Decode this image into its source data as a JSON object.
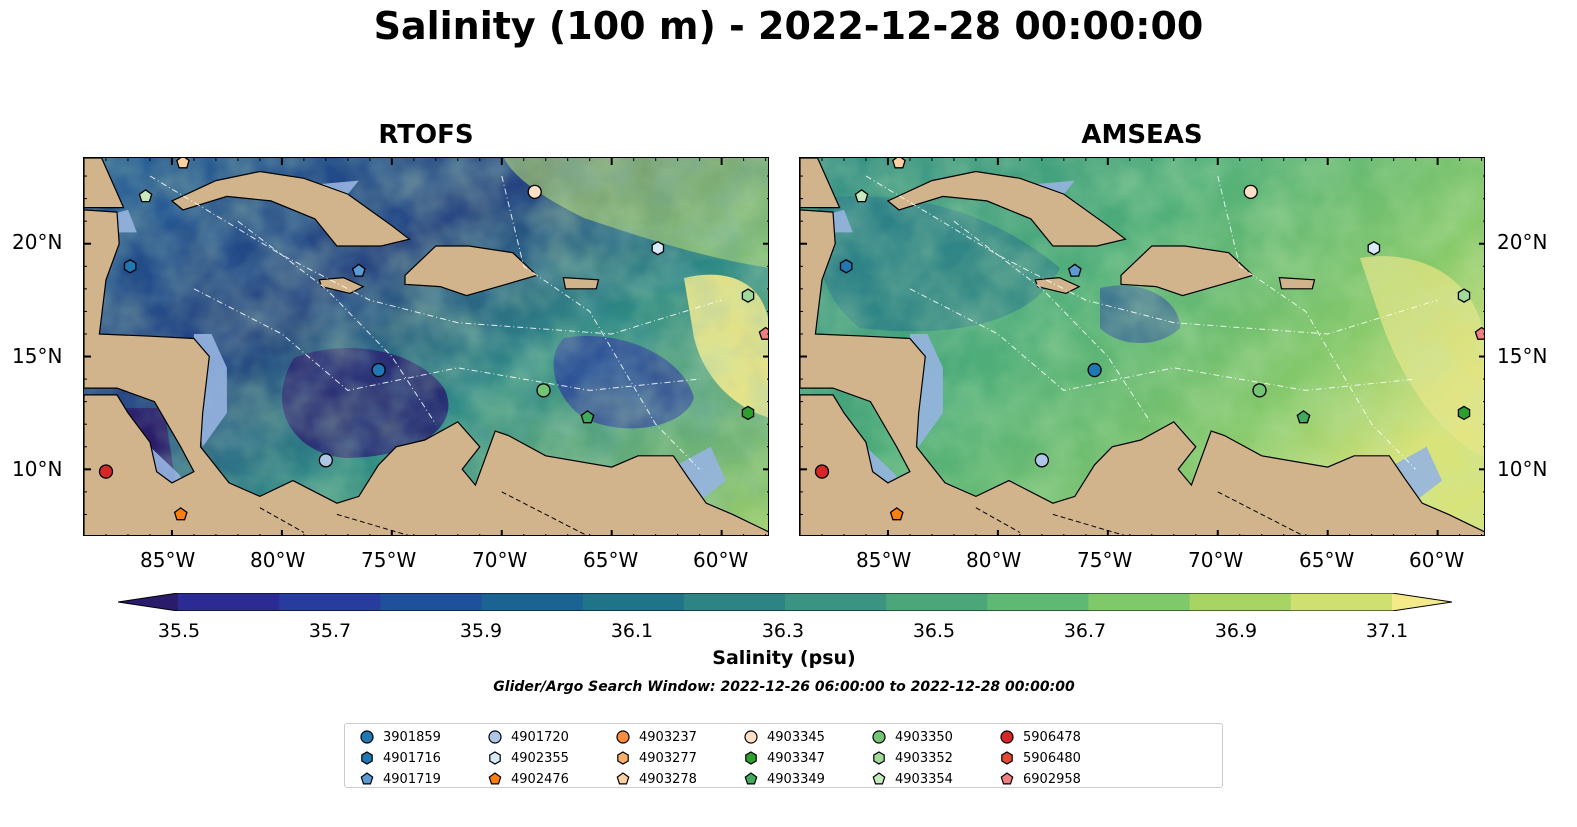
{
  "title": "Salinity (100 m) - 2022-12-28 00:00:00",
  "panels": [
    {
      "title": "RTOFS"
    },
    {
      "title": "AMSEAS"
    }
  ],
  "axes": {
    "lat_labels": [
      "20°N",
      "15°N",
      "10°N"
    ],
    "lon_labels": [
      "85°W",
      "80°W",
      "75°W",
      "70°W",
      "65°W",
      "60°W"
    ]
  },
  "colorbar": {
    "label": "Salinity (psu)",
    "ticks": [
      "35.5",
      "35.7",
      "35.9",
      "36.1",
      "36.3",
      "36.5",
      "36.7",
      "36.9",
      "37.1"
    ],
    "range": [
      35.4,
      37.2
    ],
    "extend": "both",
    "colors": [
      "#2b1b6b",
      "#2c2b93",
      "#283c9f",
      "#1f509b",
      "#1a6392",
      "#207489",
      "#2c8485",
      "#3a9481",
      "#4ba77a",
      "#5fb975",
      "#80c96a",
      "#a8d464",
      "#cfe071",
      "#f5ea8a"
    ]
  },
  "search_window": "Glider/Argo Search Window: 2022-12-26 06:00:00 to 2022-12-28 00:00:00",
  "colors": {
    "land": "#d2b48c",
    "shallow_water": "#96b4e0"
  },
  "legend": [
    {
      "id": "3901859",
      "marker": "circle",
      "color": "#1f77b4"
    },
    {
      "id": "4901716",
      "marker": "hexagon",
      "color": "#1f77b4"
    },
    {
      "id": "4901719",
      "marker": "pentagon",
      "color": "#5a9bd4"
    },
    {
      "id": "4901720",
      "marker": "circle",
      "color": "#aec7e8"
    },
    {
      "id": "4902355",
      "marker": "hexagon",
      "color": "#d6eaf8"
    },
    {
      "id": "4902476",
      "marker": "pentagon",
      "color": "#ff7f0e"
    },
    {
      "id": "4903237",
      "marker": "circle",
      "color": "#fd8d3c"
    },
    {
      "id": "4903277",
      "marker": "hexagon",
      "color": "#fdae6b"
    },
    {
      "id": "4903278",
      "marker": "pentagon",
      "color": "#fdd0a2"
    },
    {
      "id": "4903345",
      "marker": "circle",
      "color": "#fde0c5"
    },
    {
      "id": "4903347",
      "marker": "hexagon",
      "color": "#2ca02c"
    },
    {
      "id": "4903349",
      "marker": "pentagon",
      "color": "#41ab5d"
    },
    {
      "id": "4903350",
      "marker": "circle",
      "color": "#74c476"
    },
    {
      "id": "4903352",
      "marker": "hexagon",
      "color": "#a1d99b"
    },
    {
      "id": "4903354",
      "marker": "pentagon",
      "color": "#c7e9c0"
    },
    {
      "id": "5906478",
      "marker": "circle",
      "color": "#d62728"
    },
    {
      "id": "5906480",
      "marker": "hexagon",
      "color": "#e34a33"
    },
    {
      "id": "6902958",
      "marker": "pentagon",
      "color": "#f08080"
    }
  ],
  "floats": [
    {
      "id": "4903278",
      "lon": -84.5,
      "lat": 23.6
    },
    {
      "id": "4903354",
      "lon": -86.2,
      "lat": 22.1
    },
    {
      "id": "4901716",
      "lon": -86.9,
      "lat": 19.0
    },
    {
      "id": "4903345",
      "lon": -68.5,
      "lat": 22.3
    },
    {
      "id": "4902355",
      "lon": -62.9,
      "lat": 19.8
    },
    {
      "id": "4901719",
      "lon": -76.5,
      "lat": 18.8
    },
    {
      "id": "4903352",
      "lon": -58.8,
      "lat": 17.7
    },
    {
      "id": "6902958",
      "lon": -58.0,
      "lat": 16.0
    },
    {
      "id": "3901859",
      "lon": -75.6,
      "lat": 14.4
    },
    {
      "id": "4903350",
      "lon": -68.1,
      "lat": 13.5
    },
    {
      "id": "4903349",
      "lon": -66.1,
      "lat": 12.3
    },
    {
      "id": "4903347",
      "lon": -58.8,
      "lat": 12.5
    },
    {
      "id": "4901720",
      "lon": -78.0,
      "lat": 10.4
    },
    {
      "id": "5906478",
      "lon": -88.0,
      "lat": 9.9
    },
    {
      "id": "4902476",
      "lon": -84.6,
      "lat": 8.0
    }
  ]
}
